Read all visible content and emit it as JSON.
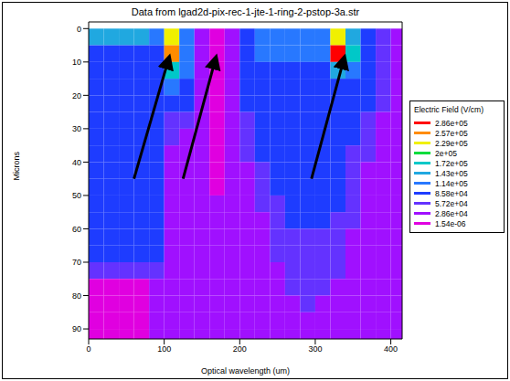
{
  "chart_data": {
    "type": "heatmap",
    "title": "Data from lgad2d-pix-rec-1-jte-1-ring-2-pstop-3a.str",
    "x_label": "Optical wavelength (um)",
    "y_label": "Microns",
    "xlim": [
      0,
      415
    ],
    "xticks": [
      0,
      100,
      200,
      300,
      400
    ],
    "ylim": [
      -2,
      93
    ],
    "yticks": [
      0,
      10,
      20,
      30,
      40,
      50,
      60,
      70,
      80,
      90
    ],
    "legend": "right",
    "x_edges": [
      0,
      20,
      40,
      60,
      80,
      100,
      120,
      140,
      160,
      180,
      200,
      220,
      240,
      260,
      280,
      300,
      320,
      340,
      360,
      380,
      400,
      420
    ],
    "y_edges": [
      0,
      5,
      10,
      15,
      20,
      25,
      30,
      35,
      40,
      45,
      50,
      55,
      60,
      65,
      70,
      75,
      80,
      85,
      90,
      95
    ],
    "cells": [
      [
        150000,
        150000,
        150000,
        150000,
        125000,
        230000,
        125000,
        40000,
        10000,
        40000,
        95000,
        125000,
        125000,
        125000,
        125000,
        125000,
        240000,
        150000,
        95000,
        70000,
        40000
      ],
      [
        95000,
        95000,
        95000,
        95000,
        95000,
        265000,
        125000,
        40000,
        10000,
        40000,
        95000,
        115000,
        115000,
        115000,
        115000,
        115000,
        286000,
        180000,
        95000,
        70000,
        40000
      ],
      [
        95000,
        95000,
        95000,
        95000,
        95000,
        180000,
        115000,
        40000,
        10000,
        40000,
        95000,
        100000,
        100000,
        100000,
        100000,
        100000,
        150000,
        120000,
        95000,
        70000,
        40000
      ],
      [
        95000,
        95000,
        95000,
        95000,
        95000,
        120000,
        95000,
        40000,
        10000,
        40000,
        95000,
        95000,
        95000,
        95000,
        95000,
        95000,
        95000,
        100000,
        90000,
        60000,
        40000
      ],
      [
        95000,
        95000,
        95000,
        95000,
        95000,
        95000,
        90000,
        40000,
        10000,
        40000,
        90000,
        95000,
        95000,
        95000,
        95000,
        95000,
        95000,
        95000,
        90000,
        60000,
        40000
      ],
      [
        95000,
        95000,
        95000,
        95000,
        95000,
        80000,
        70000,
        40000,
        10000,
        40000,
        80000,
        95000,
        95000,
        95000,
        95000,
        95000,
        95000,
        95000,
        80000,
        50000,
        40000
      ],
      [
        95000,
        95000,
        95000,
        95000,
        95000,
        60000,
        45000,
        40000,
        10000,
        40000,
        70000,
        95000,
        95000,
        95000,
        95000,
        95000,
        95000,
        90000,
        70000,
        45000,
        40000
      ],
      [
        95000,
        95000,
        95000,
        95000,
        95000,
        40000,
        40000,
        40000,
        10000,
        40000,
        60000,
        90000,
        95000,
        95000,
        95000,
        95000,
        95000,
        80000,
        60000,
        40000,
        40000
      ],
      [
        95000,
        95000,
        95000,
        95000,
        95000,
        40000,
        40000,
        40000,
        10000,
        40000,
        50000,
        80000,
        95000,
        95000,
        95000,
        95000,
        95000,
        75000,
        55000,
        40000,
        40000
      ],
      [
        95000,
        95000,
        95000,
        95000,
        95000,
        40000,
        40000,
        40000,
        15000,
        40000,
        45000,
        70000,
        90000,
        95000,
        95000,
        95000,
        95000,
        70000,
        50000,
        40000,
        40000
      ],
      [
        95000,
        95000,
        95000,
        95000,
        95000,
        40000,
        40000,
        40000,
        30000,
        40000,
        40000,
        60000,
        80000,
        95000,
        95000,
        95000,
        90000,
        65000,
        45000,
        40000,
        40000
      ],
      [
        95000,
        95000,
        95000,
        95000,
        95000,
        40000,
        40000,
        40000,
        40000,
        40000,
        40000,
        50000,
        75000,
        90000,
        90000,
        90000,
        80000,
        60000,
        40000,
        40000,
        40000
      ],
      [
        95000,
        95000,
        95000,
        95000,
        95000,
        40000,
        40000,
        40000,
        40000,
        40000,
        40000,
        45000,
        65000,
        85000,
        85000,
        85000,
        75000,
        55000,
        40000,
        40000,
        40000
      ],
      [
        90000,
        90000,
        90000,
        90000,
        90000,
        40000,
        40000,
        40000,
        40000,
        40000,
        40000,
        40000,
        60000,
        75000,
        80000,
        75000,
        65000,
        50000,
        40000,
        40000,
        40000
      ],
      [
        60000,
        60000,
        60000,
        60000,
        60000,
        40000,
        40000,
        40000,
        40000,
        40000,
        40000,
        40000,
        50000,
        65000,
        70000,
        68000,
        60000,
        45000,
        40000,
        40000,
        40000
      ],
      [
        25000,
        25000,
        25000,
        25000,
        40000,
        40000,
        40000,
        40000,
        40000,
        40000,
        40000,
        40000,
        45000,
        60000,
        65000,
        60000,
        50000,
        40000,
        40000,
        40000,
        40000
      ],
      [
        25000,
        25000,
        25000,
        25000,
        40000,
        40000,
        40000,
        40000,
        40000,
        40000,
        40000,
        40000,
        40000,
        50000,
        60000,
        50000,
        40000,
        40000,
        40000,
        40000,
        40000
      ],
      [
        25000,
        25000,
        25000,
        25000,
        40000,
        40000,
        40000,
        40000,
        40000,
        40000,
        40000,
        40000,
        40000,
        40000,
        40000,
        40000,
        40000,
        40000,
        40000,
        40000,
        40000
      ],
      [
        25000,
        25000,
        25000,
        25000,
        40000,
        40000,
        40000,
        40000,
        40000,
        40000,
        40000,
        40000,
        40000,
        40000,
        40000,
        40000,
        40000,
        40000,
        40000,
        40000,
        40000
      ]
    ],
    "colorbar": {
      "title": "Electric Field (V/cm)",
      "ticks": [
        {
          "value": 1.54e-06,
          "label": "1.54e-06"
        },
        {
          "value": 28600,
          "label": "2.86e+04"
        },
        {
          "value": 57200,
          "label": "5.72e+04"
        },
        {
          "value": 85800,
          "label": "8.58e+04"
        },
        {
          "value": 114000,
          "label": "1.14e+05"
        },
        {
          "value": 143000,
          "label": "1.43e+05"
        },
        {
          "value": 172000,
          "label": "1.72e+05"
        },
        {
          "value": 200000,
          "label": "2e+05"
        },
        {
          "value": 229000,
          "label": "2.29e+05"
        },
        {
          "value": 257000,
          "label": "2.57e+05"
        },
        {
          "value": 286000,
          "label": "2.86e+05"
        }
      ],
      "colors": [
        "#e000e0",
        "#a010ff",
        "#6432ff",
        "#1e3cff",
        "#2878ff",
        "#20a8e0",
        "#00c8c8",
        "#00dc3c",
        "#f0f000",
        "#ff8c00",
        "#ff0000"
      ]
    }
  }
}
